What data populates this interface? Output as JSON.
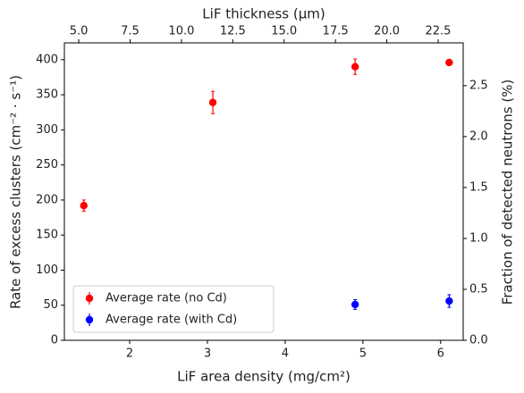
{
  "chart_data": {
    "type": "scatter",
    "x_label": "LiF area density (mg/cm²)",
    "y_label": "Rate of excess clusters (cm⁻² · s⁻¹)",
    "top_x_label": "LiF thickness (μm)",
    "y2_label": "Fraction of detected neutrons (%)",
    "xlim": [
      1.16,
      6.29
    ],
    "xticks": [
      2,
      3,
      4,
      5,
      6
    ],
    "ylim": [
      0,
      424
    ],
    "yticks": [
      0,
      50,
      100,
      150,
      200,
      250,
      300,
      350,
      400
    ],
    "top_xlim": [
      4.3,
      23.72
    ],
    "top_xticks": [
      {
        "value": 5,
        "label": "5.0"
      },
      {
        "value": 7.5,
        "label": "7.5"
      },
      {
        "value": 10,
        "label": "10.0"
      },
      {
        "value": 12.5,
        "label": "12.5"
      },
      {
        "value": 15,
        "label": "15.0"
      },
      {
        "value": 17.5,
        "label": "17.5"
      },
      {
        "value": 20,
        "label": "20.0"
      },
      {
        "value": 22.5,
        "label": "22.5"
      }
    ],
    "y2lim": [
      0,
      2.92
    ],
    "y2ticks": [
      {
        "value": 0,
        "label": "0.0"
      },
      {
        "value": 0.5,
        "label": "0.5"
      },
      {
        "value": 1,
        "label": "1.0"
      },
      {
        "value": 1.5,
        "label": "1.5"
      },
      {
        "value": 2,
        "label": "2.0"
      },
      {
        "value": 2.5,
        "label": "2.5"
      }
    ],
    "legend": "lower left",
    "series": [
      {
        "name": "Average rate (no Cd)",
        "color": "#ff0000",
        "x": [
          1.41,
          3.07,
          4.9,
          6.11
        ],
        "values": [
          192,
          339,
          390,
          396
        ],
        "errors": [
          8,
          16,
          11,
          3
        ]
      },
      {
        "name": "Average rate (with Cd)",
        "color": "#0000ff",
        "x": [
          4.9,
          6.11
        ],
        "values": [
          51,
          56
        ],
        "errors": [
          7,
          9
        ]
      }
    ]
  }
}
